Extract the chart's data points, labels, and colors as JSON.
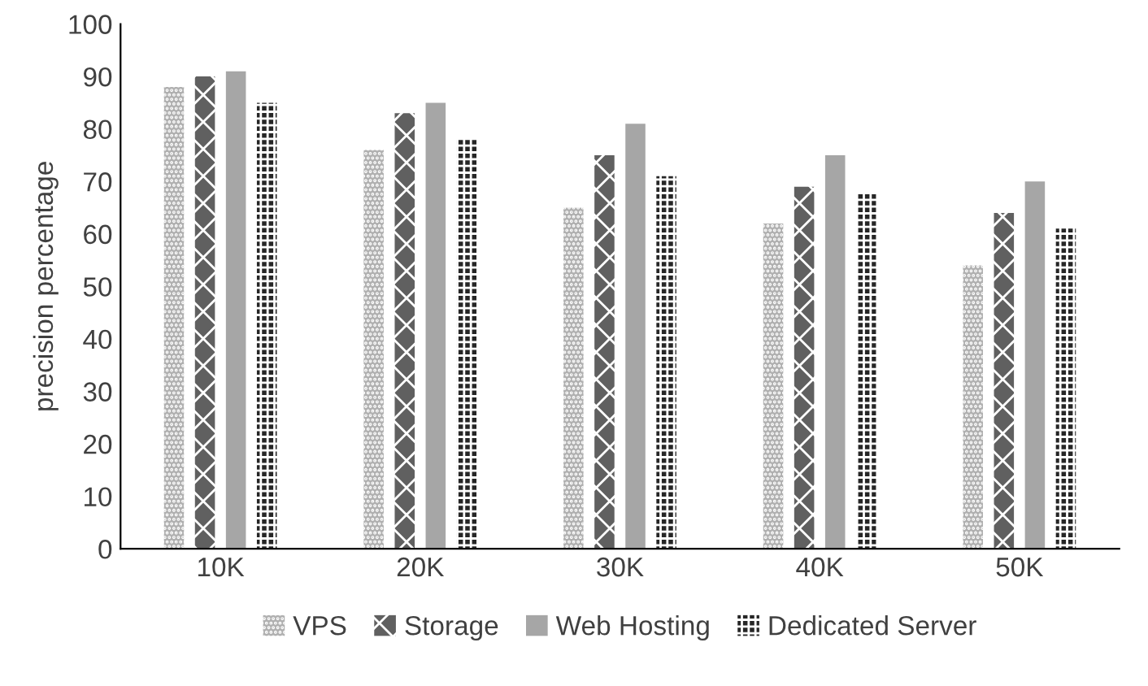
{
  "chart_data": {
    "type": "bar",
    "ylabel": "precision percentage",
    "categories": [
      "10K",
      "20K",
      "30K",
      "40K",
      "50K"
    ],
    "series": [
      {
        "name": "VPS",
        "color": "#b0b0b0",
        "values": [
          88,
          76,
          65,
          62,
          54
        ]
      },
      {
        "name": "Storage",
        "color": "#606060",
        "values": [
          90,
          83,
          75,
          69,
          64
        ]
      },
      {
        "name": "Web Hosting",
        "color": "#a6a6a6",
        "values": [
          91,
          85,
          81,
          75,
          70
        ]
      },
      {
        "name": "Dedicated Server",
        "color": "#262626",
        "values": [
          85,
          78,
          71,
          68,
          61
        ]
      }
    ],
    "ylim": [
      0,
      100
    ],
    "yticks": [
      0,
      10,
      20,
      30,
      40,
      50,
      60,
      70,
      80,
      90,
      100
    ],
    "grid": false,
    "legend": "bottom"
  }
}
